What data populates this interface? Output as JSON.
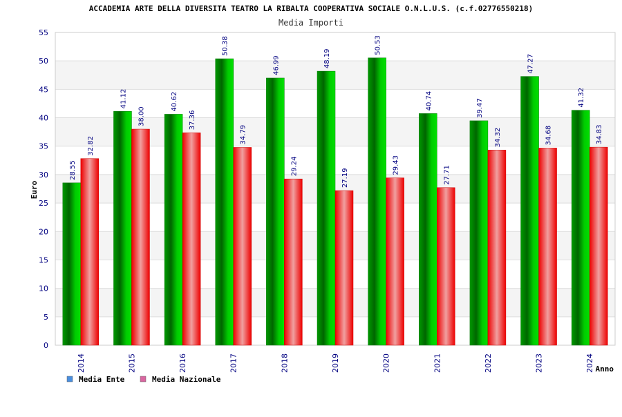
{
  "chart_data": {
    "type": "bar",
    "title": "ACCADEMIA ARTE DELLA DIVERSITA TEATRO LA RIBALTA COOPERATIVA SOCIALE O.N.L.U.S. (c.f.02776550218)",
    "subtitle": "Media Importi",
    "xlabel": "Anno",
    "ylabel": "Euro",
    "ylim": [
      0,
      55
    ],
    "yticks": [
      "0",
      "5",
      "10",
      "15",
      "20",
      "25",
      "30",
      "35",
      "40",
      "45",
      "50",
      "55"
    ],
    "grid": true,
    "categories": [
      "2014",
      "2015",
      "2016",
      "2017",
      "2018",
      "2019",
      "2020",
      "2021",
      "2022",
      "2023",
      "2024"
    ],
    "series": [
      {
        "name": "Media Ente",
        "color": "#00aa00",
        "legend_color": "#4a8fe0",
        "values": [
          28.55,
          41.12,
          40.62,
          50.38,
          46.99,
          48.19,
          50.53,
          40.74,
          39.47,
          47.27,
          41.32
        ],
        "labels": [
          "28.55",
          "41.12",
          "40.62",
          "50.38",
          "46.99",
          "48.19",
          "50.53",
          "40.74",
          "39.47",
          "47.27",
          "41.32"
        ]
      },
      {
        "name": "Media Nazionale",
        "color": "#ee1111",
        "legend_color": "#d966a0",
        "values": [
          32.82,
          38.0,
          37.36,
          34.79,
          29.24,
          27.19,
          29.43,
          27.71,
          34.32,
          34.68,
          34.83
        ],
        "labels": [
          "32.82",
          "38.00",
          "37.36",
          "34.79",
          "29.24",
          "27.19",
          "29.43",
          "27.71",
          "34.32",
          "34.68",
          "34.83"
        ]
      }
    ],
    "legend_position": "bottom-left"
  }
}
